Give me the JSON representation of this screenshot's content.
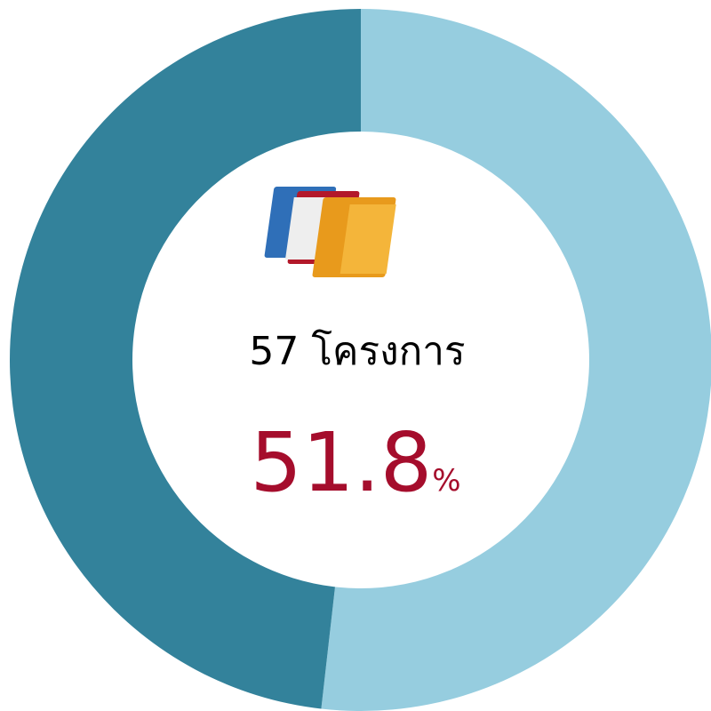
{
  "chart_data": {
    "type": "donut",
    "center_text": "57 โครงการ",
    "values": [
      51.8,
      48.2
    ],
    "value_labels": [
      "51.8%",
      null
    ],
    "colors": [
      "#96cddf",
      "#33829b"
    ],
    "start_angle": 0,
    "direction": "clockwise"
  }
}
